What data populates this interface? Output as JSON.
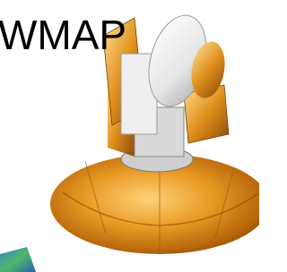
{
  "title": "WMAP"
}
